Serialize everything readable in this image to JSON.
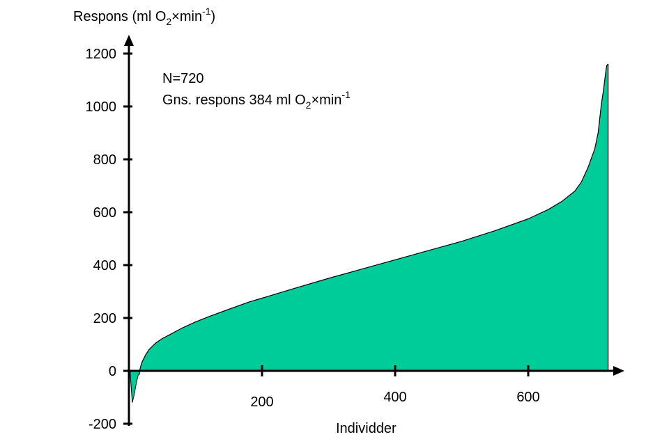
{
  "chart_data": {
    "type": "area",
    "title": "",
    "ylabel_parts": {
      "pre": "Respons (ml O",
      "sub": "2",
      "mid": "×min",
      "sup": "-1",
      "post": ")"
    },
    "xlabel": "Individder",
    "annotation": {
      "line1": "N=720",
      "line2_parts": {
        "pre": "Gns. respons 384 ml O",
        "sub": "2",
        "mid": "×min",
        "sup": "-1"
      }
    },
    "ylim": [
      -200,
      1200
    ],
    "xlim": [
      0,
      720
    ],
    "y_ticks": [
      -200,
      0,
      200,
      400,
      600,
      800,
      1000,
      1200
    ],
    "y_tick_labels": [
      "-200",
      "0",
      "200",
      "400",
      "600",
      "800",
      "1000",
      "1200"
    ],
    "x_ticks": [
      200,
      400,
      600
    ],
    "x_tick_labels": [
      "200",
      "400",
      "600"
    ],
    "fill_color": "#00CC99",
    "stroke_color": "#000000",
    "negative_region": {
      "x": [
        2,
        5,
        8,
        10,
        12,
        14,
        16
      ],
      "y": [
        -12,
        -120,
        -90,
        -60,
        -35,
        -15,
        -12
      ]
    },
    "series": {
      "x": [
        16,
        18,
        20,
        25,
        30,
        40,
        50,
        60,
        80,
        100,
        120,
        150,
        180,
        200,
        250,
        300,
        350,
        400,
        450,
        500,
        550,
        600,
        630,
        650,
        670,
        680,
        690,
        700,
        705,
        710,
        713,
        715,
        717,
        718,
        720
      ],
      "y": [
        0,
        20,
        35,
        60,
        80,
        105,
        122,
        135,
        162,
        185,
        205,
        233,
        260,
        275,
        313,
        350,
        385,
        420,
        455,
        490,
        530,
        575,
        610,
        640,
        680,
        715,
        770,
        840,
        900,
        1010,
        1060,
        1100,
        1140,
        1155,
        1160
      ]
    }
  }
}
